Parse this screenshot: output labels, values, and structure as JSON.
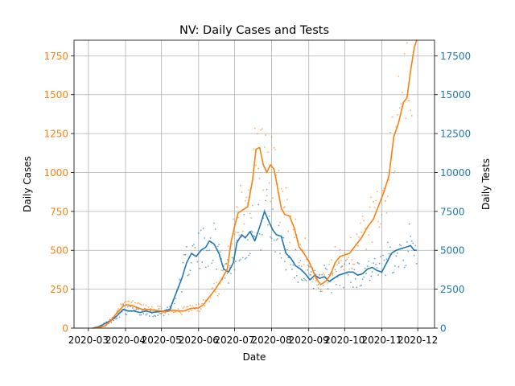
{
  "chart_data": {
    "type": "line",
    "title": "NV: Daily Cases and Tests",
    "xlabel": "Date",
    "ylabel_left": "Daily Cases",
    "ylabel_right": "Daily Tests",
    "x_ticks": [
      "2020-03",
      "2020-04",
      "2020-05",
      "2020-06",
      "2020-07",
      "2020-08",
      "2020-09",
      "2020-10",
      "2020-11",
      "2020-12"
    ],
    "x_range": [
      "2020-02-18",
      "2020-12-15"
    ],
    "y_left_ticks": [
      0,
      250,
      500,
      750,
      1000,
      1250,
      1500,
      1750
    ],
    "y_left_range": [
      0,
      1850
    ],
    "y_right_ticks": [
      0,
      2500,
      5000,
      7500,
      10000,
      12500,
      15000,
      17500
    ],
    "y_right_range": [
      0,
      18500
    ],
    "grid": true,
    "colors": {
      "cases": "#ff7f0e",
      "tests": "#1f77b4"
    },
    "series": [
      {
        "name": "Daily Cases",
        "axis": "left",
        "style": "line",
        "x": [
          "2020-03-05",
          "2020-03-10",
          "2020-03-15",
          "2020-03-20",
          "2020-03-25",
          "2020-03-30",
          "2020-04-02",
          "2020-04-06",
          "2020-04-10",
          "2020-04-15",
          "2020-04-20",
          "2020-04-25",
          "2020-05-01",
          "2020-05-05",
          "2020-05-10",
          "2020-05-15",
          "2020-05-20",
          "2020-05-25",
          "2020-06-01",
          "2020-06-05",
          "2020-06-10",
          "2020-06-15",
          "2020-06-20",
          "2020-06-25",
          "2020-06-28",
          "2020-07-01",
          "2020-07-04",
          "2020-07-08",
          "2020-07-12",
          "2020-07-16",
          "2020-07-19",
          "2020-07-22",
          "2020-07-25",
          "2020-07-28",
          "2020-07-31",
          "2020-08-03",
          "2020-08-06",
          "2020-08-09",
          "2020-08-12",
          "2020-08-16",
          "2020-08-20",
          "2020-08-24",
          "2020-08-28",
          "2020-09-01",
          "2020-09-04",
          "2020-09-07",
          "2020-09-11",
          "2020-09-15",
          "2020-09-19",
          "2020-09-23",
          "2020-09-27",
          "2020-10-01",
          "2020-10-05",
          "2020-10-10",
          "2020-10-15",
          "2020-10-20",
          "2020-10-25",
          "2020-10-30",
          "2020-11-03",
          "2020-11-07",
          "2020-11-11",
          "2020-11-15",
          "2020-11-19",
          "2020-11-22",
          "2020-11-25",
          "2020-11-28",
          "2020-11-30"
        ],
        "values": [
          0,
          5,
          15,
          50,
          100,
          140,
          150,
          145,
          135,
          120,
          120,
          115,
          110,
          105,
          115,
          110,
          110,
          125,
          130,
          150,
          200,
          250,
          310,
          380,
          550,
          650,
          740,
          760,
          780,
          950,
          1150,
          1160,
          1050,
          1000,
          1050,
          1020,
          900,
          770,
          730,
          720,
          640,
          520,
          480,
          430,
          380,
          320,
          280,
          300,
          340,
          420,
          460,
          470,
          480,
          530,
          580,
          650,
          700,
          800,
          880,
          980,
          1230,
          1320,
          1450,
          1480,
          1650,
          1800,
          1850
        ]
      },
      {
        "name": "Daily Tests",
        "axis": "right",
        "style": "line",
        "x": [
          "2020-03-05",
          "2020-03-10",
          "2020-03-15",
          "2020-03-20",
          "2020-03-25",
          "2020-03-30",
          "2020-04-03",
          "2020-04-08",
          "2020-04-13",
          "2020-04-18",
          "2020-04-23",
          "2020-04-28",
          "2020-05-03",
          "2020-05-08",
          "2020-05-12",
          "2020-05-15",
          "2020-05-18",
          "2020-05-22",
          "2020-05-26",
          "2020-05-30",
          "2020-06-03",
          "2020-06-07",
          "2020-06-10",
          "2020-06-14",
          "2020-06-18",
          "2020-06-22",
          "2020-06-26",
          "2020-06-30",
          "2020-07-03",
          "2020-07-07",
          "2020-07-10",
          "2020-07-14",
          "2020-07-18",
          "2020-07-22",
          "2020-07-26",
          "2020-07-30",
          "2020-08-02",
          "2020-08-05",
          "2020-08-09",
          "2020-08-13",
          "2020-08-17",
          "2020-08-21",
          "2020-08-25",
          "2020-08-29",
          "2020-09-02",
          "2020-09-06",
          "2020-09-10",
          "2020-09-14",
          "2020-09-18",
          "2020-09-22",
          "2020-09-26",
          "2020-09-30",
          "2020-10-04",
          "2020-10-08",
          "2020-10-12",
          "2020-10-16",
          "2020-10-20",
          "2020-10-24",
          "2020-10-28",
          "2020-11-01",
          "2020-11-05",
          "2020-11-09",
          "2020-11-13",
          "2020-11-17",
          "2020-11-21",
          "2020-11-25",
          "2020-11-28",
          "2020-11-30"
        ],
        "values": [
          0,
          100,
          300,
          500,
          800,
          1200,
          1100,
          1100,
          1000,
          1100,
          1000,
          1050,
          1100,
          1200,
          2000,
          2600,
          3200,
          4200,
          4800,
          4600,
          5000,
          5200,
          5600,
          5400,
          4800,
          3800,
          3600,
          4200,
          5500,
          6000,
          5800,
          6200,
          5600,
          6500,
          7500,
          6800,
          6300,
          6000,
          5900,
          4800,
          4500,
          4000,
          3800,
          3500,
          3100,
          3400,
          3200,
          3300,
          3000,
          3200,
          3400,
          3500,
          3600,
          3600,
          3400,
          3500,
          3800,
          3900,
          3700,
          3600,
          4200,
          4800,
          5000,
          5100,
          5200,
          5300,
          5000,
          5000
        ]
      }
    ]
  }
}
